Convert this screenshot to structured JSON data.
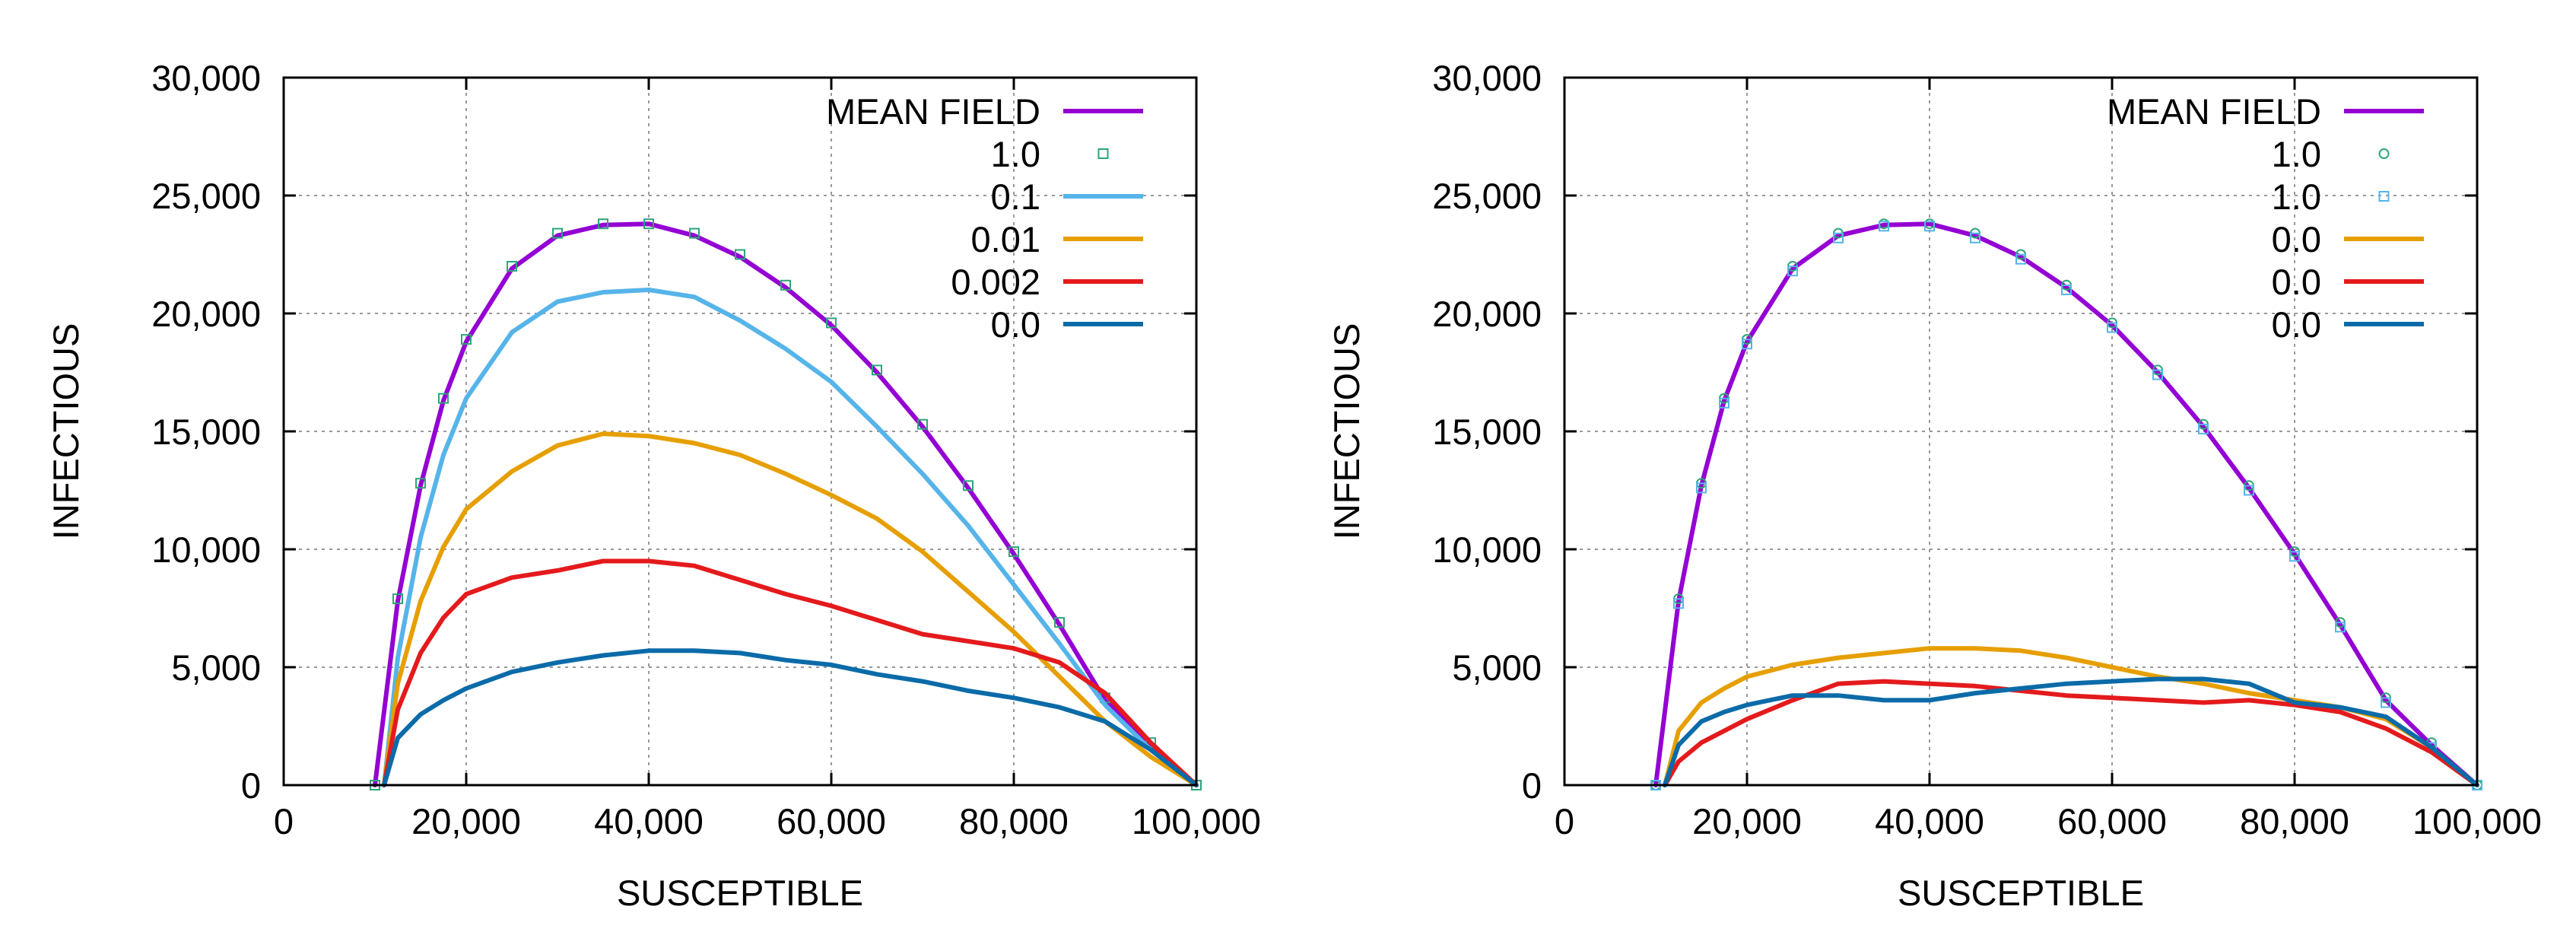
{
  "chart_data": [
    {
      "type": "line",
      "title": "",
      "xlabel": "SUSCEPTIBLE",
      "ylabel": "INFECTIOUS",
      "xlim": [
        0,
        100000
      ],
      "ylim": [
        0,
        30000
      ],
      "grid": true,
      "legend_position": "top-right",
      "xticks": [
        0,
        20000,
        40000,
        60000,
        80000,
        100000
      ],
      "xtick_labels": [
        "0",
        "20,000",
        "40,000",
        "60,000",
        "80,000",
        "100,000"
      ],
      "yticks": [
        0,
        5000,
        10000,
        15000,
        20000,
        25000,
        30000
      ],
      "ytick_labels": [
        "0",
        "5,000",
        "10,000",
        "15,000",
        "20,000",
        "25,000",
        "30,000"
      ],
      "series": [
        {
          "name": "MEAN FIELD",
          "style": "line",
          "color": "#9400d3",
          "x": [
            10000,
            12500,
            15000,
            17500,
            20000,
            25000,
            30000,
            35000,
            40000,
            45000,
            50000,
            55000,
            60000,
            65000,
            70000,
            75000,
            80000,
            85000,
            90000,
            95000,
            100000
          ],
          "y": [
            0,
            7800,
            12700,
            16300,
            18800,
            21900,
            23300,
            23750,
            23800,
            23300,
            22400,
            21100,
            19500,
            17500,
            15200,
            12600,
            9800,
            6800,
            3600,
            1700,
            0
          ]
        },
        {
          "name": "1.0",
          "style": "marker-square",
          "color": "#2ca57a",
          "x": [
            10000,
            12500,
            15000,
            17500,
            20000,
            25000,
            30000,
            35000,
            40000,
            45000,
            50000,
            55000,
            60000,
            65000,
            70000,
            75000,
            80000,
            85000,
            90000,
            95000,
            100000
          ],
          "y": [
            0,
            7900,
            12800,
            16400,
            18900,
            22000,
            23400,
            23800,
            23800,
            23400,
            22500,
            21200,
            19600,
            17600,
            15300,
            12700,
            9900,
            6900,
            3700,
            1800,
            0
          ]
        },
        {
          "name": "0.1",
          "style": "line",
          "color": "#56b4e9",
          "x": [
            11000,
            12500,
            15000,
            17500,
            20000,
            25000,
            30000,
            35000,
            40000,
            45000,
            50000,
            55000,
            60000,
            65000,
            70000,
            75000,
            80000,
            85000,
            90000,
            95000,
            100000
          ],
          "y": [
            0,
            5400,
            10500,
            14000,
            16400,
            19200,
            20500,
            20900,
            21000,
            20700,
            19700,
            18500,
            17100,
            15200,
            13200,
            11000,
            8500,
            6000,
            3400,
            1500,
            0
          ]
        },
        {
          "name": "0.01",
          "style": "line",
          "color": "#e69f00",
          "x": [
            11000,
            12500,
            15000,
            17500,
            20000,
            25000,
            30000,
            35000,
            40000,
            45000,
            50000,
            55000,
            60000,
            65000,
            70000,
            75000,
            80000,
            85000,
            90000,
            95000,
            100000
          ],
          "y": [
            0,
            4300,
            7800,
            10100,
            11700,
            13300,
            14400,
            14900,
            14800,
            14500,
            14000,
            13200,
            12300,
            11300,
            9900,
            8200,
            6500,
            4600,
            2700,
            1200,
            0
          ]
        },
        {
          "name": "0.002",
          "style": "line",
          "color": "#e41a1c",
          "x": [
            11000,
            12500,
            15000,
            17500,
            20000,
            25000,
            30000,
            35000,
            40000,
            45000,
            50000,
            55000,
            60000,
            65000,
            70000,
            75000,
            80000,
            85000,
            90000,
            95000,
            100000
          ],
          "y": [
            0,
            3200,
            5600,
            7100,
            8100,
            8800,
            9100,
            9500,
            9500,
            9300,
            8700,
            8100,
            7600,
            7000,
            6400,
            6100,
            5800,
            5200,
            3900,
            1800,
            0
          ]
        },
        {
          "name": "0.0",
          "style": "line",
          "color": "#0b6ba8",
          "x": [
            11000,
            12500,
            15000,
            17500,
            20000,
            25000,
            30000,
            35000,
            40000,
            45000,
            50000,
            55000,
            60000,
            65000,
            70000,
            75000,
            80000,
            85000,
            90000,
            95000,
            100000
          ],
          "y": [
            0,
            2000,
            3000,
            3600,
            4100,
            4800,
            5200,
            5500,
            5700,
            5700,
            5600,
            5300,
            5100,
            4700,
            4400,
            4000,
            3700,
            3300,
            2700,
            1500,
            0
          ]
        }
      ]
    },
    {
      "type": "line",
      "title": "",
      "xlabel": "SUSCEPTIBLE",
      "ylabel": "INFECTIOUS",
      "xlim": [
        0,
        100000
      ],
      "ylim": [
        0,
        30000
      ],
      "grid": true,
      "legend_position": "top-right",
      "xticks": [
        0,
        20000,
        40000,
        60000,
        80000,
        100000
      ],
      "xtick_labels": [
        "0",
        "20,000",
        "40,000",
        "60,000",
        "80,000",
        "100,000"
      ],
      "yticks": [
        0,
        5000,
        10000,
        15000,
        20000,
        25000,
        30000
      ],
      "ytick_labels": [
        "0",
        "5,000",
        "10,000",
        "15,000",
        "20,000",
        "25,000",
        "30,000"
      ],
      "series": [
        {
          "name": "MEAN FIELD",
          "style": "line",
          "color": "#9400d3",
          "x": [
            10000,
            12500,
            15000,
            17500,
            20000,
            25000,
            30000,
            35000,
            40000,
            45000,
            50000,
            55000,
            60000,
            65000,
            70000,
            75000,
            80000,
            85000,
            90000,
            95000,
            100000
          ],
          "y": [
            0,
            7800,
            12700,
            16300,
            18800,
            21900,
            23300,
            23750,
            23800,
            23300,
            22400,
            21100,
            19500,
            17500,
            15200,
            12600,
            9800,
            6800,
            3600,
            1700,
            0
          ]
        },
        {
          "name": "1.0",
          "style": "marker-circle",
          "color": "#2ca57a",
          "x": [
            10000,
            12500,
            15000,
            17500,
            20000,
            25000,
            30000,
            35000,
            40000,
            45000,
            50000,
            55000,
            60000,
            65000,
            70000,
            75000,
            80000,
            85000,
            90000,
            95000,
            100000
          ],
          "y": [
            0,
            7900,
            12800,
            16400,
            18900,
            22000,
            23400,
            23800,
            23800,
            23400,
            22500,
            21200,
            19600,
            17600,
            15300,
            12700,
            9900,
            6900,
            3700,
            1800,
            0
          ]
        },
        {
          "name": "1.0",
          "style": "marker-square",
          "color": "#56b4e9",
          "x": [
            10000,
            12500,
            15000,
            17500,
            20000,
            25000,
            30000,
            35000,
            40000,
            45000,
            50000,
            55000,
            60000,
            65000,
            70000,
            75000,
            80000,
            85000,
            90000,
            95000,
            100000
          ],
          "y": [
            0,
            7700,
            12600,
            16200,
            18700,
            21800,
            23200,
            23700,
            23700,
            23200,
            22300,
            21000,
            19400,
            17400,
            15100,
            12500,
            9700,
            6700,
            3500,
            1600,
            0
          ]
        },
        {
          "name": "0.0",
          "style": "line",
          "color": "#e69f00",
          "x": [
            11000,
            12500,
            15000,
            17500,
            20000,
            25000,
            30000,
            35000,
            40000,
            45000,
            50000,
            55000,
            60000,
            65000,
            70000,
            75000,
            80000,
            85000,
            90000,
            95000,
            100000
          ],
          "y": [
            0,
            2300,
            3500,
            4100,
            4600,
            5100,
            5400,
            5600,
            5800,
            5800,
            5700,
            5400,
            5000,
            4600,
            4300,
            3900,
            3600,
            3300,
            2800,
            1600,
            0
          ]
        },
        {
          "name": "0.0",
          "style": "line",
          "color": "#e41a1c",
          "x": [
            11000,
            12500,
            15000,
            17500,
            20000,
            25000,
            30000,
            35000,
            40000,
            45000,
            50000,
            55000,
            60000,
            65000,
            70000,
            75000,
            80000,
            85000,
            90000,
            95000,
            100000
          ],
          "y": [
            0,
            1000,
            1800,
            2300,
            2800,
            3600,
            4300,
            4400,
            4300,
            4200,
            4000,
            3800,
            3700,
            3600,
            3500,
            3600,
            3400,
            3100,
            2400,
            1400,
            0
          ]
        },
        {
          "name": "0.0",
          "style": "line",
          "color": "#0b6ba8",
          "x": [
            11000,
            12500,
            15000,
            17500,
            20000,
            25000,
            30000,
            35000,
            40000,
            45000,
            50000,
            55000,
            60000,
            65000,
            70000,
            75000,
            80000,
            85000,
            90000,
            95000,
            100000
          ],
          "y": [
            0,
            1700,
            2700,
            3100,
            3400,
            3800,
            3800,
            3600,
            3600,
            3900,
            4100,
            4300,
            4400,
            4500,
            4500,
            4300,
            3500,
            3300,
            2900,
            1600,
            0
          ]
        }
      ]
    }
  ]
}
